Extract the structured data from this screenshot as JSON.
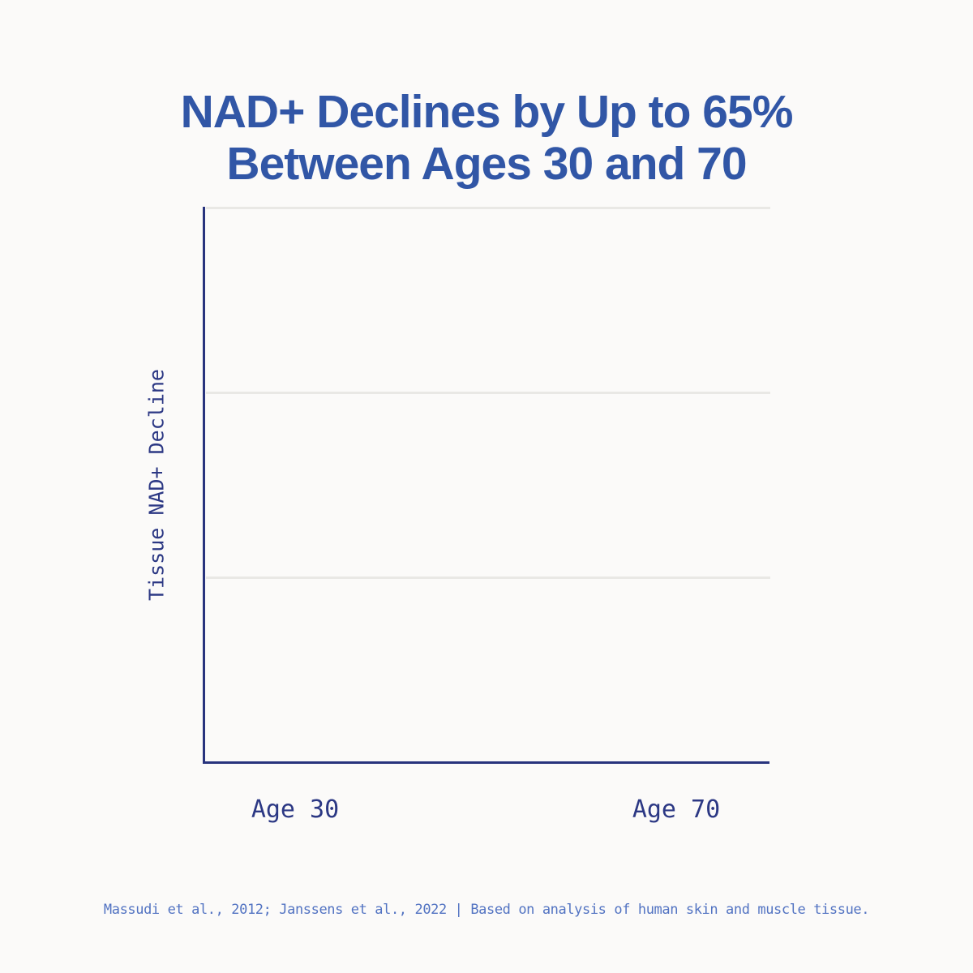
{
  "title": {
    "line1": "NAD+ Declines by Up to 65%",
    "line2": "Between Ages 30 and 70"
  },
  "chart": {
    "y_axis_label": "Tissue NAD+ Decline",
    "x_tick_labels": [
      "Age 30",
      "Age 70"
    ]
  },
  "footer": {
    "source": "Massudi et al., 2012; Janssens et al., 2022 | Based on analysis of human skin and muscle tissue."
  },
  "colors": {
    "background": "#fbfaf9",
    "title_blue": "#3156a6",
    "axis_navy": "#28337d",
    "tick_label_navy": "#2c3884",
    "gridline_gray": "#e9e8e5",
    "source_blue": "#5273c2"
  },
  "chart_data": {
    "type": "line",
    "title": "NAD+ Declines by Up to 65% Between Ages 30 and 70",
    "categories": [
      "Age 30",
      "Age 70"
    ],
    "series": [],
    "xlabel": "",
    "ylabel": "Tissue NAD+ Decline",
    "grid": "horizontal",
    "gridline_positions_fraction_from_top": [
      0,
      0.3333,
      0.6667
    ],
    "legend": "none",
    "plot_empty_no_data_drawn": true,
    "source": "Massudi et al., 2012; Janssens et al., 2022 | Based on analysis of human skin and muscle tissue."
  }
}
